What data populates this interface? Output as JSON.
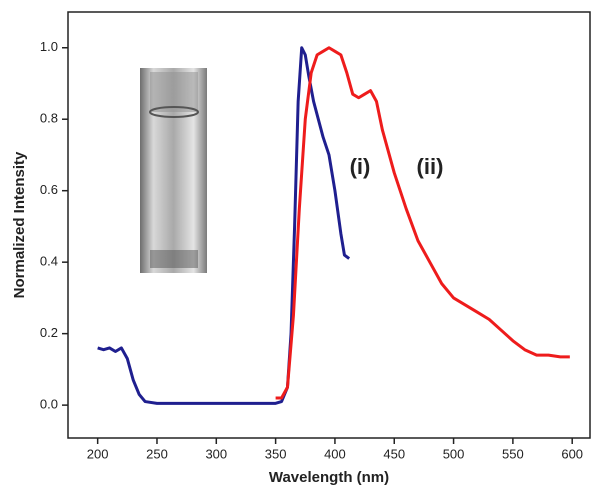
{
  "chart_data": {
    "type": "line",
    "xlabel": "Wavelength (nm)",
    "ylabel": "Normalized Intensity",
    "xlim": [
      175,
      615
    ],
    "ylim": [
      -0.092,
      1.1
    ],
    "xticks": [
      200,
      250,
      300,
      350,
      400,
      450,
      500,
      550,
      600
    ],
    "yticks": [
      {
        "value": 0,
        "label": "0.0"
      },
      0.2,
      0.4,
      0.6,
      0.8,
      {
        "value": 1,
        "label": "1.0"
      }
    ],
    "annotations": [
      "(i)",
      "(ii)"
    ],
    "series": [
      {
        "name": "(i)",
        "color": "#1f1f8f",
        "x": [
          200,
          205,
          210,
          215,
          220,
          225,
          230,
          235,
          240,
          250,
          300,
          350,
          355,
          360,
          363,
          366,
          369,
          372,
          375,
          378,
          382,
          386,
          390,
          395,
          400,
          405,
          408,
          412
        ],
        "values": [
          0.16,
          0.155,
          0.16,
          0.15,
          0.16,
          0.13,
          0.07,
          0.03,
          0.01,
          0.005,
          0.005,
          0.005,
          0.01,
          0.05,
          0.2,
          0.5,
          0.85,
          1.0,
          0.98,
          0.92,
          0.85,
          0.8,
          0.75,
          0.7,
          0.6,
          0.48,
          0.42,
          0.41
        ]
      },
      {
        "name": "(ii)",
        "color": "#ee1c1c",
        "x": [
          350,
          355,
          360,
          365,
          370,
          375,
          380,
          385,
          390,
          395,
          400,
          405,
          410,
          415,
          420,
          425,
          430,
          435,
          440,
          450,
          460,
          470,
          480,
          490,
          500,
          510,
          520,
          530,
          540,
          550,
          560,
          570,
          580,
          590,
          598
        ],
        "values": [
          0.02,
          0.02,
          0.05,
          0.25,
          0.55,
          0.8,
          0.93,
          0.98,
          0.99,
          1.0,
          0.99,
          0.98,
          0.93,
          0.87,
          0.86,
          0.87,
          0.88,
          0.85,
          0.77,
          0.65,
          0.55,
          0.46,
          0.4,
          0.34,
          0.3,
          0.28,
          0.26,
          0.24,
          0.21,
          0.18,
          0.155,
          0.14,
          0.14,
          0.135,
          0.135
        ]
      }
    ]
  }
}
